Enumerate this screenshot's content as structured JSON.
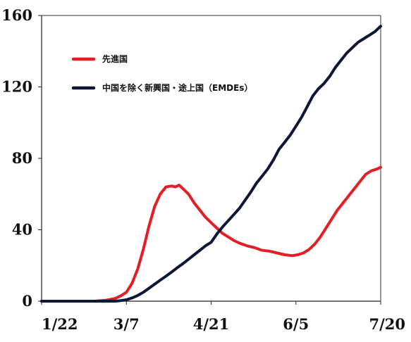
{
  "chart_data": {
    "type": "line",
    "title": "",
    "xlabel": "",
    "ylabel": "",
    "xlim": [
      "1/22",
      "7/20"
    ],
    "ylim": [
      0,
      160
    ],
    "grid": false,
    "legend_placement": "top-left",
    "x_ticks": [
      "1/22",
      "3/7",
      "4/21",
      "6/5",
      "7/20"
    ],
    "y_ticks": [
      0,
      40,
      80,
      120,
      160
    ],
    "series": [
      {
        "name": "先進国",
        "color": "#e31e24",
        "points": [
          [
            "1/22",
            0
          ],
          [
            "2/1",
            0
          ],
          [
            "2/10",
            0
          ],
          [
            "2/19",
            0
          ],
          [
            "2/25",
            0.5
          ],
          [
            "3/1",
            1.5
          ],
          [
            "3/4",
            3
          ],
          [
            "3/7",
            5
          ],
          [
            "3/10",
            10
          ],
          [
            "3/13",
            18
          ],
          [
            "3/16",
            29
          ],
          [
            "3/19",
            42
          ],
          [
            "3/22",
            53
          ],
          [
            "3/25",
            60
          ],
          [
            "3/28",
            64
          ],
          [
            "3/31",
            64.5
          ],
          [
            "4/2",
            64
          ],
          [
            "4/4",
            65
          ],
          [
            "4/6",
            63
          ],
          [
            "4/9",
            60
          ],
          [
            "4/12",
            55
          ],
          [
            "4/15",
            51
          ],
          [
            "4/18",
            47
          ],
          [
            "4/21",
            44
          ],
          [
            "4/24",
            41
          ],
          [
            "4/27",
            38
          ],
          [
            "4/30",
            36
          ],
          [
            "5/3",
            34
          ],
          [
            "5/6",
            32.5
          ],
          [
            "5/10",
            31
          ],
          [
            "5/14",
            30
          ],
          [
            "5/18",
            28.5
          ],
          [
            "5/22",
            28
          ],
          [
            "5/26",
            27
          ],
          [
            "5/30",
            26
          ],
          [
            "6/3",
            25.5
          ],
          [
            "6/6",
            26
          ],
          [
            "6/9",
            27
          ],
          [
            "6/12",
            29
          ],
          [
            "6/15",
            32
          ],
          [
            "6/18",
            36
          ],
          [
            "6/21",
            41
          ],
          [
            "6/24",
            46
          ],
          [
            "6/27",
            51
          ],
          [
            "6/30",
            55
          ],
          [
            "7/3",
            59
          ],
          [
            "7/6",
            63
          ],
          [
            "7/9",
            67
          ],
          [
            "7/12",
            71
          ],
          [
            "7/15",
            73
          ],
          [
            "7/18",
            74
          ],
          [
            "7/20",
            75
          ]
        ]
      },
      {
        "name": "中国を除く新興国・途上国（EMDEs）",
        "color": "#0d1738",
        "points": [
          [
            "1/22",
            0
          ],
          [
            "2/1",
            0
          ],
          [
            "2/10",
            0
          ],
          [
            "2/19",
            0
          ],
          [
            "2/25",
            0
          ],
          [
            "3/1",
            0
          ],
          [
            "3/4",
            0.3
          ],
          [
            "3/7",
            0.8
          ],
          [
            "3/10",
            1.8
          ],
          [
            "3/13",
            3.2
          ],
          [
            "3/16",
            5
          ],
          [
            "3/19",
            7.2
          ],
          [
            "3/22",
            9.5
          ],
          [
            "3/25",
            11.8
          ],
          [
            "3/28",
            14
          ],
          [
            "3/31",
            16.3
          ],
          [
            "4/3",
            18.7
          ],
          [
            "4/6",
            21
          ],
          [
            "4/9",
            23.5
          ],
          [
            "4/12",
            26
          ],
          [
            "4/15",
            28.5
          ],
          [
            "4/18",
            31
          ],
          [
            "4/21",
            33
          ],
          [
            "4/24",
            37.5
          ],
          [
            "4/27",
            41.5
          ],
          [
            "4/30",
            45
          ],
          [
            "5/3",
            48.5
          ],
          [
            "5/6",
            52
          ],
          [
            "5/9",
            56.5
          ],
          [
            "5/12",
            61
          ],
          [
            "5/15",
            66
          ],
          [
            "5/18",
            70
          ],
          [
            "5/21",
            74
          ],
          [
            "5/24",
            79
          ],
          [
            "5/27",
            85
          ],
          [
            "5/30",
            89
          ],
          [
            "6/2",
            93
          ],
          [
            "6/5",
            98
          ],
          [
            "6/8",
            103
          ],
          [
            "6/11",
            109
          ],
          [
            "6/14",
            115
          ],
          [
            "6/17",
            119
          ],
          [
            "6/20",
            122
          ],
          [
            "6/23",
            126
          ],
          [
            "6/26",
            131
          ],
          [
            "6/29",
            135
          ],
          [
            "7/2",
            139
          ],
          [
            "7/5",
            142
          ],
          [
            "7/8",
            145
          ],
          [
            "7/11",
            147
          ],
          [
            "7/14",
            149
          ],
          [
            "7/17",
            151
          ],
          [
            "7/20",
            154
          ]
        ]
      }
    ]
  }
}
